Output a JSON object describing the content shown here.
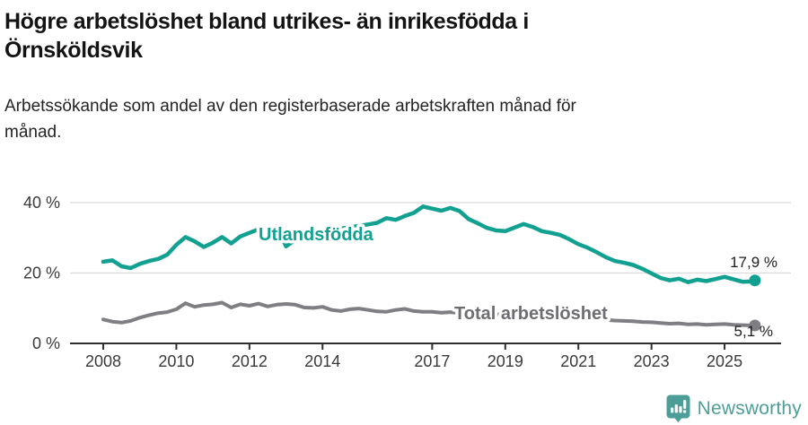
{
  "header": {
    "title": "Högre arbetslöshet bland utrikes- än inrikesfödda i\nÖrnsköldsvik",
    "subtitle": "Arbetssökande som andel av den registerbaserade arbetskraften månad för\nmånad."
  },
  "chart_data": {
    "type": "line",
    "title": "Högre arbetslöshet bland utrikes- än inrikesfödda i Örnsköldsvik",
    "subtitle": "Arbetssökande som andel av den registerbaserade arbetskraften månad för månad.",
    "x_unit": "decimal_year",
    "xlim": [
      2007.5,
      2026.2
    ],
    "ylim": [
      0,
      40
    ],
    "grid": "horizontal-only",
    "legend_position": "inline-labels-on-lines",
    "y_ticks": [
      {
        "value": 0,
        "label": "0 %"
      },
      {
        "value": 20,
        "label": "20 %"
      },
      {
        "value": 40,
        "label": "40 %"
      }
    ],
    "x_ticks": [
      {
        "value": 2008,
        "label": "2008"
      },
      {
        "value": 2010,
        "label": "2010"
      },
      {
        "value": 2012,
        "label": "2012"
      },
      {
        "value": 2014,
        "label": "2014"
      },
      {
        "value": 2017,
        "label": "2017"
      },
      {
        "value": 2019,
        "label": "2019"
      },
      {
        "value": 2021,
        "label": "2021"
      },
      {
        "value": 2023,
        "label": "2023"
      },
      {
        "value": 2025,
        "label": "2025"
      }
    ],
    "x": [
      2008.0,
      2008.25,
      2008.5,
      2008.75,
      2009.0,
      2009.25,
      2009.5,
      2009.75,
      2010.0,
      2010.25,
      2010.5,
      2010.75,
      2011.0,
      2011.25,
      2011.5,
      2011.75,
      2012.0,
      2012.25,
      2012.5,
      2012.75,
      2013.0,
      2013.25,
      2013.5,
      2013.75,
      2014.0,
      2014.25,
      2014.5,
      2014.75,
      2015.0,
      2015.25,
      2015.5,
      2015.75,
      2016.0,
      2016.25,
      2016.5,
      2016.75,
      2017.0,
      2017.25,
      2017.5,
      2017.75,
      2018.0,
      2018.25,
      2018.5,
      2018.75,
      2019.0,
      2019.25,
      2019.5,
      2019.75,
      2020.0,
      2020.25,
      2020.5,
      2020.75,
      2021.0,
      2021.25,
      2021.5,
      2021.75,
      2022.0,
      2022.25,
      2022.5,
      2022.75,
      2023.0,
      2023.25,
      2023.5,
      2023.75,
      2024.0,
      2024.25,
      2024.5,
      2024.75,
      2025.0,
      2025.25,
      2025.5,
      2025.75,
      2025.83
    ],
    "series": [
      {
        "name": "Utlandsfödda",
        "color": "#12a191",
        "end_label": "17,9 %",
        "end_value": 17.9,
        "values": [
          23.2,
          23.6,
          21.9,
          21.4,
          22.6,
          23.4,
          24.0,
          25.2,
          28.0,
          30.2,
          29.0,
          27.4,
          28.6,
          30.2,
          28.4,
          30.4,
          31.4,
          32.4,
          31.8,
          33.2,
          27.6,
          29.4,
          30.6,
          31.4,
          31.9,
          32.2,
          32.6,
          33.0,
          33.4,
          33.8,
          34.3,
          35.6,
          35.1,
          36.2,
          37.1,
          38.9,
          38.3,
          37.7,
          38.5,
          37.6,
          35.3,
          34.1,
          32.8,
          32.1,
          31.9,
          32.9,
          33.9,
          33.1,
          31.9,
          31.4,
          30.8,
          29.6,
          28.2,
          27.2,
          25.9,
          24.5,
          23.4,
          22.9,
          22.3,
          21.2,
          19.9,
          18.6,
          17.9,
          18.4,
          17.4,
          18.1,
          17.7,
          18.3,
          18.9,
          18.2,
          17.5,
          17.6,
          17.9
        ]
      },
      {
        "name": "Total arbetslöshet",
        "color": "#7e7e83",
        "label_color": "#6d6d72",
        "end_label": "5,1 %",
        "end_value": 5.1,
        "values": [
          6.8,
          6.2,
          5.9,
          6.4,
          7.3,
          8.0,
          8.6,
          8.9,
          9.7,
          11.4,
          10.4,
          10.9,
          11.1,
          11.6,
          10.2,
          11.1,
          10.7,
          11.3,
          10.5,
          11.0,
          11.2,
          11.0,
          10.2,
          10.1,
          10.4,
          9.5,
          9.2,
          9.7,
          9.9,
          9.5,
          9.1,
          9.0,
          9.5,
          9.8,
          9.2,
          9.0,
          9.0,
          8.7,
          8.9,
          8.6,
          8.4,
          8.6,
          8.3,
          8.2,
          8.5,
          8.7,
          8.4,
          8.3,
          8.6,
          8.9,
          8.7,
          8.2,
          7.8,
          7.4,
          7.0,
          6.7,
          6.5,
          6.4,
          6.3,
          6.1,
          6.0,
          5.8,
          5.6,
          5.7,
          5.4,
          5.5,
          5.3,
          5.4,
          5.5,
          5.3,
          5.2,
          5.1,
          5.1
        ]
      }
    ],
    "colors": {
      "axis": "#2f2f2f",
      "gridline": "#dadada",
      "tick_text": "#3a3a3a"
    }
  },
  "footer": {
    "brand": "Newsworthy",
    "brand_color": "#4d9e98",
    "logo_icon": "speech-bubble-bar-chart-icon"
  }
}
